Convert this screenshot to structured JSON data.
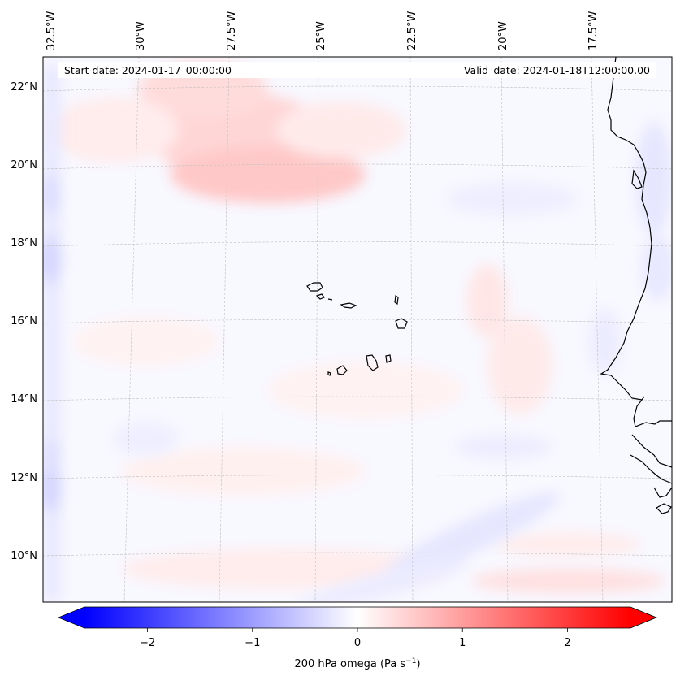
{
  "map": {
    "start_label": "Start date: 2024-01-17_00:00:00",
    "valid_label": "Valid_date: 2024-01-18T12:00:00.00",
    "lon_labels": [
      "32.5°W",
      "30°W",
      "27.5°W",
      "25°W",
      "22.5°W",
      "20°W",
      "17.5°W"
    ],
    "lat_labels": [
      "22°N",
      "20°N",
      "18°N",
      "16°N",
      "14°N",
      "12°N",
      "10°N"
    ],
    "field": "200 hPa omega"
  },
  "colorbar": {
    "ticks": [
      "−2",
      "−1",
      "0",
      "1",
      "2"
    ],
    "label_main": "200 hPa omega (Pa s",
    "label_exp": "−1",
    "label_close": ")",
    "range": [
      -2.6,
      2.6
    ],
    "colors": {
      "negative": "#0000ff",
      "zero": "#ffffff",
      "positive": "#ff0000"
    }
  }
}
